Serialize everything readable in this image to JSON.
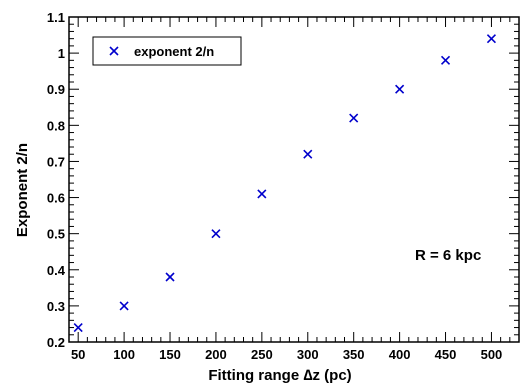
{
  "chart_data": {
    "type": "scatter",
    "title": "",
    "xlabel": "Fitting range  ∆z  (pc)",
    "ylabel": "Exponent  2/n",
    "xlim": [
      40,
      530
    ],
    "ylim": [
      0.2,
      1.1
    ],
    "xticks": [
      {
        "value": 50,
        "label": "50"
      },
      {
        "value": 100,
        "label": "100"
      },
      {
        "value": 150,
        "label": "150"
      },
      {
        "value": 200,
        "label": "200"
      },
      {
        "value": 250,
        "label": "250"
      },
      {
        "value": 300,
        "label": "300"
      },
      {
        "value": 350,
        "label": "350"
      },
      {
        "value": 400,
        "label": "400"
      },
      {
        "value": 450,
        "label": "450"
      },
      {
        "value": 500,
        "label": "500"
      }
    ],
    "yticks": [
      {
        "value": 0.2,
        "label": "0.2"
      },
      {
        "value": 0.3,
        "label": "0.3"
      },
      {
        "value": 0.4,
        "label": "0.4"
      },
      {
        "value": 0.5,
        "label": "0.5"
      },
      {
        "value": 0.6,
        "label": "0.6"
      },
      {
        "value": 0.7,
        "label": "0.7"
      },
      {
        "value": 0.8,
        "label": "0.8"
      },
      {
        "value": 0.9,
        "label": "0.9"
      },
      {
        "value": 1.0,
        "label": "1"
      },
      {
        "value": 1.1,
        "label": "1.1"
      }
    ],
    "series": [
      {
        "name": "exponent 2/n",
        "color": "#0000cc",
        "marker": "cross",
        "x": [
          50,
          100,
          150,
          200,
          250,
          300,
          350,
          400,
          450,
          500
        ],
        "y": [
          0.24,
          0.3,
          0.38,
          0.5,
          0.61,
          0.72,
          0.82,
          0.9,
          0.98,
          1.04
        ]
      }
    ],
    "legend": {
      "placement": "top-left",
      "label": "exponent 2/n"
    },
    "annotation": "R = 6 kpc",
    "grid": false
  }
}
